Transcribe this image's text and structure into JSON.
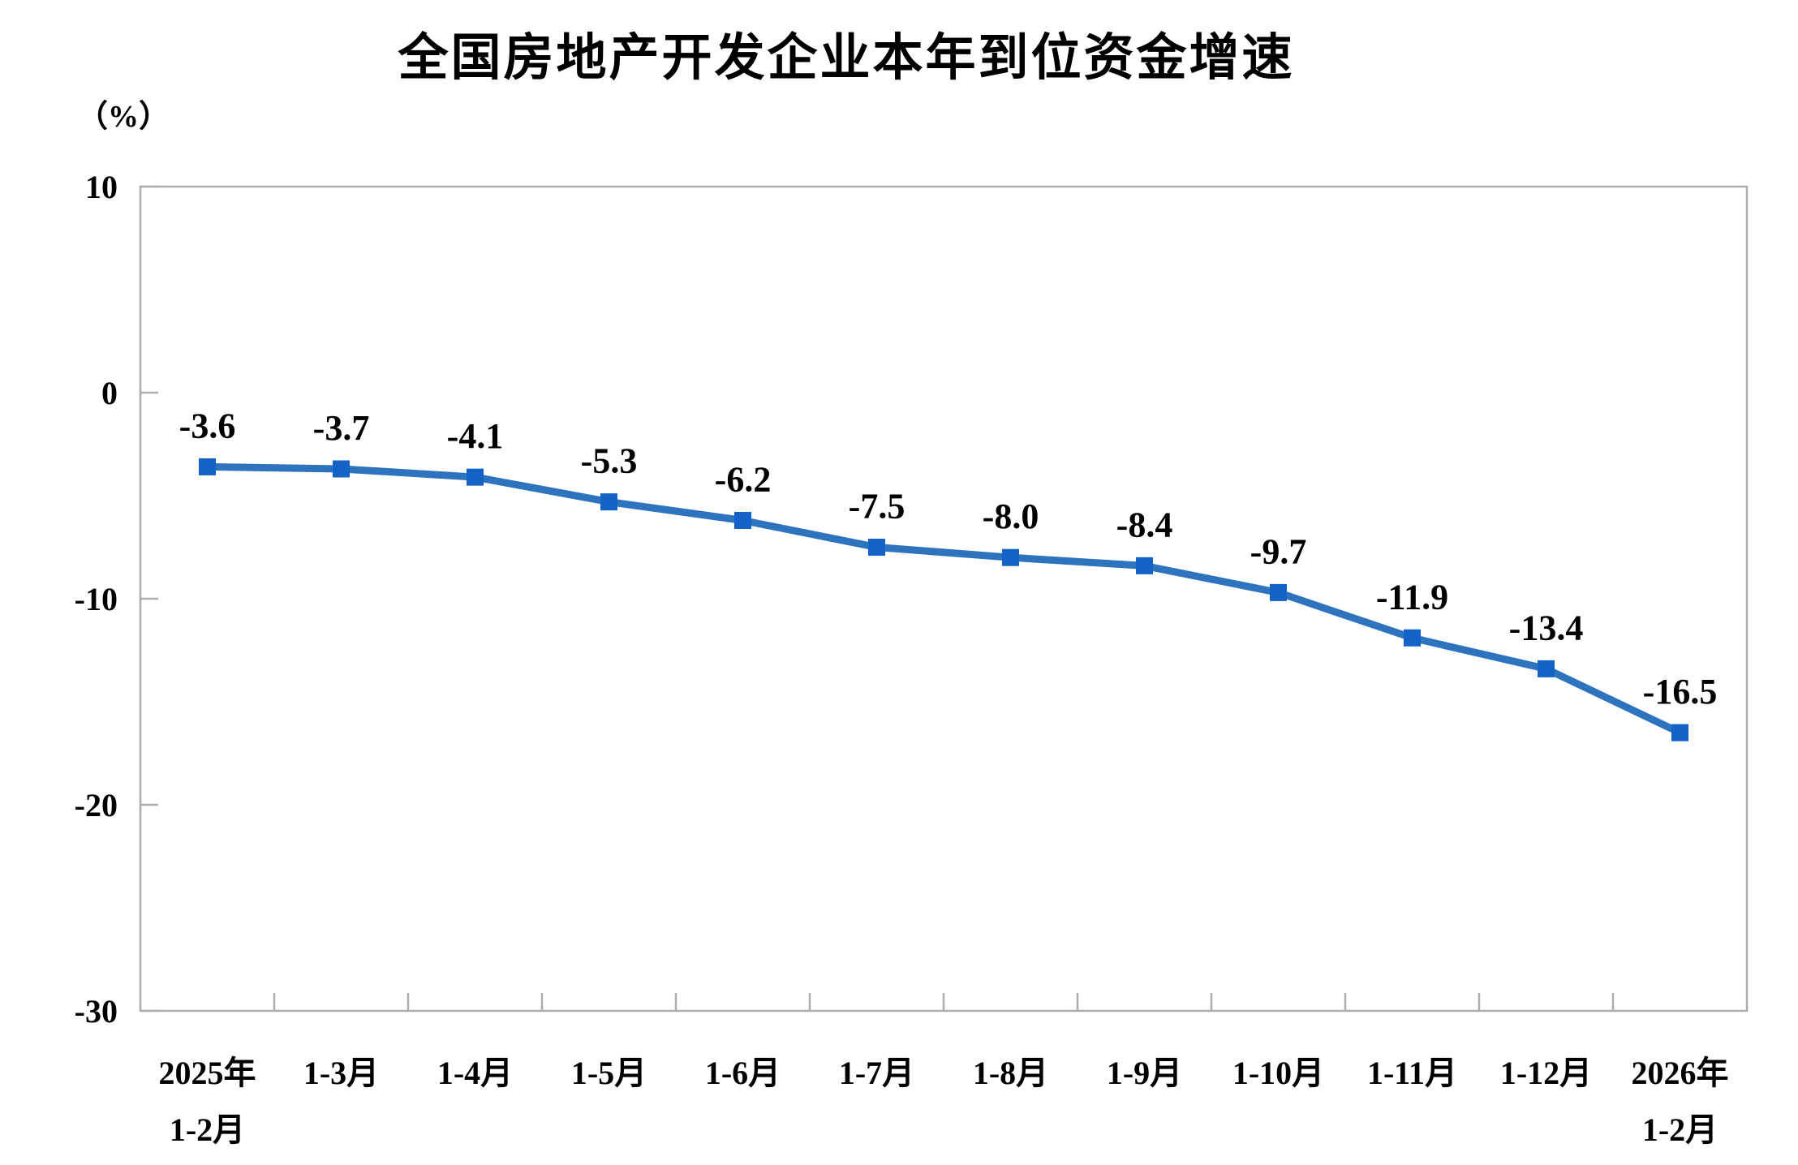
{
  "chart_data": {
    "type": "line",
    "title": "全国房地产开发企业本年到位资金增速",
    "unit_label": "（%）",
    "categories": [
      "2025年\n1-2月",
      "1-3月",
      "1-4月",
      "1-5月",
      "1-6月",
      "1-7月",
      "1-8月",
      "1-9月",
      "1-10月",
      "1-11月",
      "1-12月",
      "2026年\n1-2月"
    ],
    "values": [
      -3.6,
      -3.7,
      -4.1,
      -5.3,
      -6.2,
      -7.5,
      -8.0,
      -8.4,
      -9.7,
      -11.9,
      -13.4,
      -16.5
    ],
    "data_labels": [
      "-3.6",
      "-3.7",
      "-4.1",
      "-5.3",
      "-6.2",
      "-7.5",
      "-8.0",
      "-8.4",
      "-9.7",
      "-11.9",
      "-13.4",
      "-16.5"
    ],
    "xlabel": "",
    "ylabel": "（%）",
    "ylim": [
      -30,
      10
    ],
    "yticks": [
      10,
      0,
      -10,
      -20,
      -30
    ],
    "grid": false,
    "legend": "none",
    "marker_shape": "square",
    "line_color": "#2e73be",
    "marker_color": "#1262c8",
    "axis_color": "#adadad",
    "text_color": "#000000",
    "background_color": "#ffffff"
  }
}
